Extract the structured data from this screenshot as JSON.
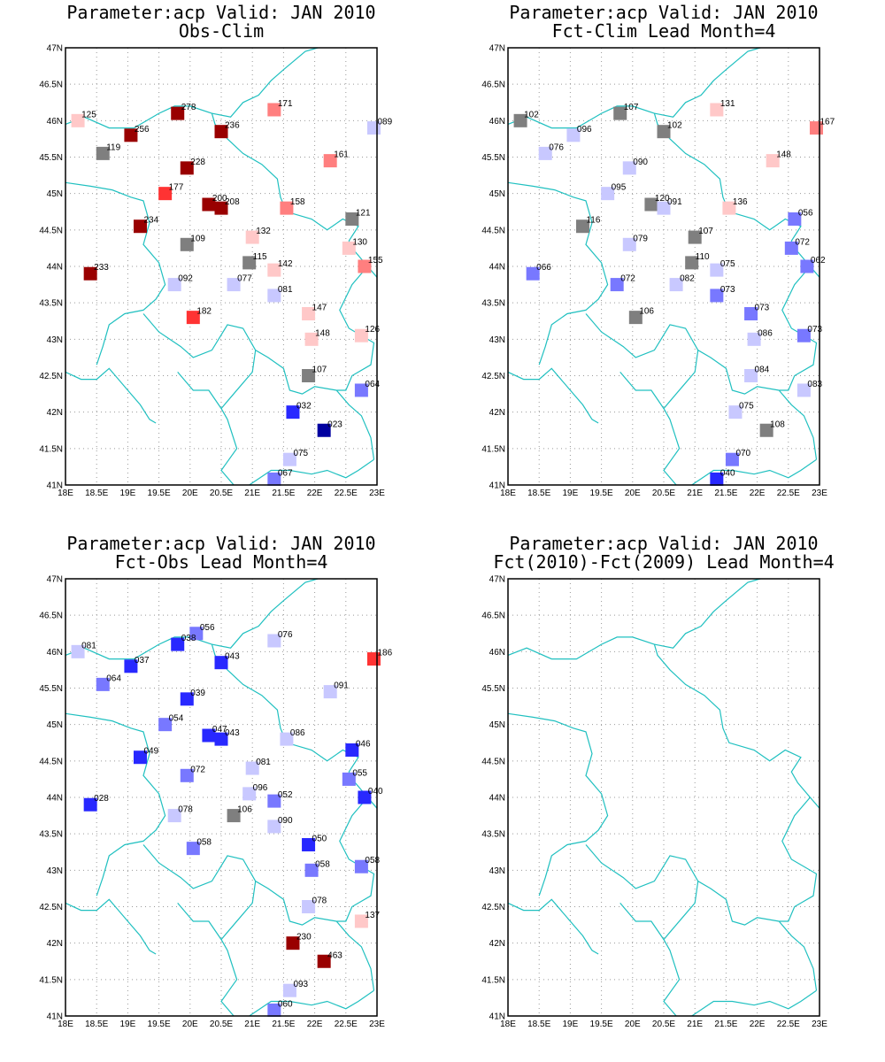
{
  "axes": {
    "lon_range": [
      18,
      23
    ],
    "lat_range": [
      41,
      47
    ],
    "lon_labels": [
      "18E",
      "18.5E",
      "19E",
      "19.5E",
      "20E",
      "20.5E",
      "21E",
      "21.5E",
      "22E",
      "22.5E",
      "23E"
    ],
    "lat_labels": [
      "41N",
      "41.5N",
      "42N",
      "42.5N",
      "43N",
      "43.5N",
      "44N",
      "44.5N",
      "45N",
      "45.5N",
      "46N",
      "46.5N",
      "47N"
    ]
  },
  "colors": {
    "dark_red": "#990000",
    "red": "#ff3333",
    "salmon": "#ff7f7f",
    "pink": "#ffc8c8",
    "gray": "#7f7f7f",
    "light_blue": "#c8c8ff",
    "mid_blue": "#7878ff",
    "blue": "#2828ff",
    "dark_blue": "#0000a0",
    "coast": "#20c0c0"
  },
  "panels": [
    {
      "title1": "Parameter:acp Valid: JAN 2010",
      "title2": "Obs-Clim",
      "stations": [
        {
          "lon": 18.2,
          "lat": 46.0,
          "label": "125",
          "color": "pink"
        },
        {
          "lon": 19.8,
          "lat": 46.1,
          "label": "278",
          "color": "dark_red"
        },
        {
          "lon": 21.35,
          "lat": 46.15,
          "label": "171",
          "color": "salmon"
        },
        {
          "lon": 22.95,
          "lat": 45.9,
          "label": "089",
          "color": "light_blue"
        },
        {
          "lon": 19.05,
          "lat": 45.8,
          "label": "256",
          "color": "dark_red"
        },
        {
          "lon": 20.5,
          "lat": 45.85,
          "label": "236",
          "color": "dark_red"
        },
        {
          "lon": 18.6,
          "lat": 45.55,
          "label": "119",
          "color": "gray"
        },
        {
          "lon": 19.95,
          "lat": 45.35,
          "label": "228",
          "color": "dark_red"
        },
        {
          "lon": 22.25,
          "lat": 45.45,
          "label": "161",
          "color": "salmon"
        },
        {
          "lon": 19.6,
          "lat": 45.0,
          "label": "177",
          "color": "red"
        },
        {
          "lon": 20.3,
          "lat": 44.85,
          "label": "200",
          "color": "dark_red"
        },
        {
          "lon": 20.5,
          "lat": 44.8,
          "label": "208",
          "color": "dark_red"
        },
        {
          "lon": 21.55,
          "lat": 44.8,
          "label": "158",
          "color": "salmon"
        },
        {
          "lon": 22.6,
          "lat": 44.65,
          "label": "121",
          "color": "gray"
        },
        {
          "lon": 19.2,
          "lat": 44.55,
          "label": "234",
          "color": "dark_red"
        },
        {
          "lon": 21.0,
          "lat": 44.4,
          "label": "132",
          "color": "pink"
        },
        {
          "lon": 22.55,
          "lat": 44.25,
          "label": "130",
          "color": "pink"
        },
        {
          "lon": 19.95,
          "lat": 44.3,
          "label": "109",
          "color": "gray"
        },
        {
          "lon": 20.95,
          "lat": 44.05,
          "label": "115",
          "color": "gray"
        },
        {
          "lon": 21.35,
          "lat": 43.95,
          "label": "142",
          "color": "pink"
        },
        {
          "lon": 22.8,
          "lat": 44.0,
          "label": "155",
          "color": "salmon"
        },
        {
          "lon": 18.4,
          "lat": 43.9,
          "label": "233",
          "color": "dark_red"
        },
        {
          "lon": 19.75,
          "lat": 43.75,
          "label": "092",
          "color": "light_blue"
        },
        {
          "lon": 20.7,
          "lat": 43.75,
          "label": "077",
          "color": "light_blue"
        },
        {
          "lon": 21.35,
          "lat": 43.6,
          "label": "081",
          "color": "light_blue"
        },
        {
          "lon": 20.05,
          "lat": 43.3,
          "label": "182",
          "color": "red"
        },
        {
          "lon": 21.9,
          "lat": 43.35,
          "label": "147",
          "color": "pink"
        },
        {
          "lon": 21.95,
          "lat": 43.0,
          "label": "148",
          "color": "pink"
        },
        {
          "lon": 22.75,
          "lat": 43.05,
          "label": "126",
          "color": "pink"
        },
        {
          "lon": 21.9,
          "lat": 42.5,
          "label": "107",
          "color": "gray"
        },
        {
          "lon": 22.75,
          "lat": 42.3,
          "label": "064",
          "color": "mid_blue"
        },
        {
          "lon": 21.65,
          "lat": 42.0,
          "label": "032",
          "color": "blue"
        },
        {
          "lon": 22.15,
          "lat": 41.75,
          "label": "023",
          "color": "dark_blue"
        },
        {
          "lon": 21.6,
          "lat": 41.35,
          "label": "075",
          "color": "light_blue"
        },
        {
          "lon": 21.35,
          "lat": 41.08,
          "label": "067",
          "color": "mid_blue"
        }
      ]
    },
    {
      "title1": "Parameter:acp Valid: JAN 2010",
      "title2": "Fct-Clim Lead Month=4",
      "stations": [
        {
          "lon": 18.2,
          "lat": 46.0,
          "label": "102",
          "color": "gray"
        },
        {
          "lon": 19.8,
          "lat": 46.1,
          "label": "107",
          "color": "gray"
        },
        {
          "lon": 21.35,
          "lat": 46.15,
          "label": "131",
          "color": "pink"
        },
        {
          "lon": 22.95,
          "lat": 45.9,
          "label": "167",
          "color": "salmon"
        },
        {
          "lon": 19.05,
          "lat": 45.8,
          "label": "096",
          "color": "light_blue"
        },
        {
          "lon": 20.5,
          "lat": 45.85,
          "label": "102",
          "color": "gray"
        },
        {
          "lon": 18.6,
          "lat": 45.55,
          "label": "076",
          "color": "light_blue"
        },
        {
          "lon": 19.95,
          "lat": 45.35,
          "label": "090",
          "color": "light_blue"
        },
        {
          "lon": 22.25,
          "lat": 45.45,
          "label": "148",
          "color": "pink"
        },
        {
          "lon": 19.6,
          "lat": 45.0,
          "label": "095",
          "color": "light_blue"
        },
        {
          "lon": 20.3,
          "lat": 44.85,
          "label": "120",
          "color": "gray"
        },
        {
          "lon": 20.5,
          "lat": 44.8,
          "label": "091",
          "color": "light_blue"
        },
        {
          "lon": 21.55,
          "lat": 44.8,
          "label": "136",
          "color": "pink"
        },
        {
          "lon": 22.6,
          "lat": 44.65,
          "label": "056",
          "color": "mid_blue"
        },
        {
          "lon": 19.2,
          "lat": 44.55,
          "label": "116",
          "color": "gray"
        },
        {
          "lon": 21.0,
          "lat": 44.4,
          "label": "107",
          "color": "gray"
        },
        {
          "lon": 22.55,
          "lat": 44.25,
          "label": "072",
          "color": "mid_blue"
        },
        {
          "lon": 19.95,
          "lat": 44.3,
          "label": "079",
          "color": "light_blue"
        },
        {
          "lon": 20.95,
          "lat": 44.05,
          "label": "110",
          "color": "gray"
        },
        {
          "lon": 21.35,
          "lat": 43.95,
          "label": "075",
          "color": "light_blue"
        },
        {
          "lon": 22.8,
          "lat": 44.0,
          "label": "062",
          "color": "mid_blue"
        },
        {
          "lon": 18.4,
          "lat": 43.9,
          "label": "066",
          "color": "mid_blue"
        },
        {
          "lon": 19.75,
          "lat": 43.75,
          "label": "072",
          "color": "mid_blue"
        },
        {
          "lon": 20.7,
          "lat": 43.75,
          "label": "082",
          "color": "light_blue"
        },
        {
          "lon": 21.35,
          "lat": 43.6,
          "label": "073",
          "color": "mid_blue"
        },
        {
          "lon": 20.05,
          "lat": 43.3,
          "label": "106",
          "color": "gray"
        },
        {
          "lon": 21.9,
          "lat": 43.35,
          "label": "073",
          "color": "mid_blue"
        },
        {
          "lon": 21.95,
          "lat": 43.0,
          "label": "086",
          "color": "light_blue"
        },
        {
          "lon": 22.75,
          "lat": 43.05,
          "label": "073",
          "color": "mid_blue"
        },
        {
          "lon": 21.9,
          "lat": 42.5,
          "label": "084",
          "color": "light_blue"
        },
        {
          "lon": 22.75,
          "lat": 42.3,
          "label": "083",
          "color": "light_blue"
        },
        {
          "lon": 21.65,
          "lat": 42.0,
          "label": "075",
          "color": "light_blue"
        },
        {
          "lon": 22.15,
          "lat": 41.75,
          "label": "108",
          "color": "gray"
        },
        {
          "lon": 21.6,
          "lat": 41.35,
          "label": "070",
          "color": "mid_blue"
        },
        {
          "lon": 21.35,
          "lat": 41.08,
          "label": "040",
          "color": "blue"
        }
      ]
    },
    {
      "title1": "Parameter:acp Valid: JAN 2010",
      "title2": "Fct-Obs Lead Month=4",
      "stations": [
        {
          "lon": 18.2,
          "lat": 46.0,
          "label": "081",
          "color": "light_blue"
        },
        {
          "lon": 20.1,
          "lat": 46.25,
          "label": "056",
          "color": "mid_blue"
        },
        {
          "lon": 19.8,
          "lat": 46.1,
          "label": "038",
          "color": "blue"
        },
        {
          "lon": 21.35,
          "lat": 46.15,
          "label": "076",
          "color": "light_blue"
        },
        {
          "lon": 22.95,
          "lat": 45.9,
          "label": "186",
          "color": "red"
        },
        {
          "lon": 19.05,
          "lat": 45.8,
          "label": "037",
          "color": "blue"
        },
        {
          "lon": 20.5,
          "lat": 45.85,
          "label": "043",
          "color": "blue"
        },
        {
          "lon": 18.6,
          "lat": 45.55,
          "label": "064",
          "color": "mid_blue"
        },
        {
          "lon": 19.95,
          "lat": 45.35,
          "label": "039",
          "color": "blue"
        },
        {
          "lon": 22.25,
          "lat": 45.45,
          "label": "091",
          "color": "light_blue"
        },
        {
          "lon": 19.6,
          "lat": 45.0,
          "label": "054",
          "color": "mid_blue"
        },
        {
          "lon": 20.3,
          "lat": 44.85,
          "label": "047",
          "color": "blue"
        },
        {
          "lon": 20.5,
          "lat": 44.8,
          "label": "043",
          "color": "blue"
        },
        {
          "lon": 21.55,
          "lat": 44.8,
          "label": "086",
          "color": "light_blue"
        },
        {
          "lon": 22.6,
          "lat": 44.65,
          "label": "046",
          "color": "blue"
        },
        {
          "lon": 19.2,
          "lat": 44.55,
          "label": "049",
          "color": "blue"
        },
        {
          "lon": 21.0,
          "lat": 44.4,
          "label": "081",
          "color": "light_blue"
        },
        {
          "lon": 22.55,
          "lat": 44.25,
          "label": "055",
          "color": "mid_blue"
        },
        {
          "lon": 19.95,
          "lat": 44.3,
          "label": "072",
          "color": "mid_blue"
        },
        {
          "lon": 20.95,
          "lat": 44.05,
          "label": "096",
          "color": "light_blue"
        },
        {
          "lon": 21.35,
          "lat": 43.95,
          "label": "052",
          "color": "mid_blue"
        },
        {
          "lon": 22.8,
          "lat": 44.0,
          "label": "040",
          "color": "blue"
        },
        {
          "lon": 18.4,
          "lat": 43.9,
          "label": "028",
          "color": "blue"
        },
        {
          "lon": 19.75,
          "lat": 43.75,
          "label": "078",
          "color": "light_blue"
        },
        {
          "lon": 20.7,
          "lat": 43.75,
          "label": "106",
          "color": "gray"
        },
        {
          "lon": 21.35,
          "lat": 43.6,
          "label": "090",
          "color": "light_blue"
        },
        {
          "lon": 20.05,
          "lat": 43.3,
          "label": "058",
          "color": "mid_blue"
        },
        {
          "lon": 21.9,
          "lat": 43.35,
          "label": "050",
          "color": "blue"
        },
        {
          "lon": 21.95,
          "lat": 43.0,
          "label": "058",
          "color": "mid_blue"
        },
        {
          "lon": 22.75,
          "lat": 43.05,
          "label": "058",
          "color": "mid_blue"
        },
        {
          "lon": 21.9,
          "lat": 42.5,
          "label": "078",
          "color": "light_blue"
        },
        {
          "lon": 22.75,
          "lat": 42.3,
          "label": "137",
          "color": "pink"
        },
        {
          "lon": 21.65,
          "lat": 42.0,
          "label": "230",
          "color": "dark_red"
        },
        {
          "lon": 22.15,
          "lat": 41.75,
          "label": "463",
          "color": "dark_red"
        },
        {
          "lon": 21.6,
          "lat": 41.35,
          "label": "093",
          "color": "light_blue"
        },
        {
          "lon": 21.35,
          "lat": 41.08,
          "label": "060",
          "color": "mid_blue"
        }
      ]
    },
    {
      "title1": "Parameter:acp Valid: JAN 2010",
      "title2": "Fct(2010)-Fct(2009) Lead Month=4",
      "stations": []
    }
  ],
  "borders": [
    [
      [
        18.0,
        45.95
      ],
      [
        18.3,
        46.05
      ],
      [
        18.7,
        45.9
      ],
      [
        19.1,
        45.9
      ],
      [
        19.5,
        46.1
      ],
      [
        19.75,
        46.2
      ],
      [
        20.0,
        46.2
      ],
      [
        20.35,
        46.1
      ],
      [
        20.65,
        46.05
      ],
      [
        20.85,
        46.25
      ],
      [
        21.1,
        46.35
      ],
      [
        21.3,
        46.55
      ],
      [
        21.5,
        46.7
      ],
      [
        21.85,
        46.95
      ],
      [
        22.05,
        47.0
      ]
    ],
    [
      [
        18.0,
        42.55
      ],
      [
        18.25,
        42.45
      ],
      [
        18.5,
        42.45
      ],
      [
        18.7,
        42.6
      ],
      [
        19.0,
        42.3
      ],
      [
        19.2,
        42.1
      ],
      [
        19.35,
        41.9
      ],
      [
        19.45,
        41.85
      ]
    ],
    [
      [
        18.0,
        45.15
      ],
      [
        18.4,
        45.1
      ],
      [
        18.75,
        45.05
      ],
      [
        19.05,
        44.95
      ],
      [
        19.25,
        44.9
      ],
      [
        19.35,
        44.6
      ],
      [
        19.25,
        44.3
      ],
      [
        19.5,
        44.05
      ],
      [
        19.6,
        43.75
      ],
      [
        19.45,
        43.55
      ],
      [
        19.25,
        43.4
      ],
      [
        18.95,
        43.35
      ],
      [
        18.7,
        43.2
      ],
      [
        18.6,
        42.9
      ],
      [
        18.5,
        42.65
      ]
    ],
    [
      [
        19.25,
        43.35
      ],
      [
        19.5,
        43.1
      ],
      [
        19.85,
        42.9
      ],
      [
        20.05,
        42.75
      ],
      [
        20.35,
        42.85
      ],
      [
        20.6,
        43.2
      ],
      [
        20.85,
        43.15
      ],
      [
        21.05,
        42.85
      ],
      [
        21.25,
        42.75
      ],
      [
        21.5,
        42.6
      ],
      [
        21.6,
        42.3
      ],
      [
        21.8,
        42.25
      ],
      [
        22.0,
        42.35
      ],
      [
        22.35,
        42.3
      ]
    ],
    [
      [
        19.8,
        42.55
      ],
      [
        20.05,
        42.3
      ],
      [
        20.3,
        42.3
      ],
      [
        20.5,
        42.05
      ],
      [
        20.6,
        41.9
      ],
      [
        20.75,
        41.5
      ],
      [
        20.5,
        41.2
      ],
      [
        20.7,
        41.0
      ]
    ],
    [
      [
        21.05,
        42.85
      ],
      [
        21.0,
        42.55
      ],
      [
        20.8,
        42.35
      ],
      [
        20.6,
        42.15
      ],
      [
        20.5,
        42.05
      ]
    ],
    [
      [
        20.95,
        41.0
      ],
      [
        21.3,
        41.2
      ],
      [
        21.6,
        41.2
      ],
      [
        21.95,
        41.15
      ],
      [
        22.2,
        41.2
      ],
      [
        22.5,
        41.1
      ],
      [
        22.7,
        41.2
      ],
      [
        22.95,
        41.35
      ]
    ],
    [
      [
        22.35,
        42.3
      ],
      [
        22.55,
        42.1
      ],
      [
        22.75,
        41.95
      ],
      [
        22.9,
        41.65
      ],
      [
        22.95,
        41.35
      ]
    ],
    [
      [
        20.35,
        46.1
      ],
      [
        20.4,
        45.95
      ],
      [
        20.6,
        45.75
      ],
      [
        20.85,
        45.55
      ],
      [
        21.15,
        45.4
      ],
      [
        21.4,
        45.2
      ],
      [
        21.45,
        44.95
      ],
      [
        21.55,
        44.75
      ],
      [
        21.95,
        44.65
      ],
      [
        22.2,
        44.5
      ],
      [
        22.45,
        44.65
      ],
      [
        22.7,
        44.55
      ],
      [
        22.55,
        44.35
      ],
      [
        22.65,
        44.2
      ],
      [
        22.85,
        44.0
      ],
      [
        23.0,
        43.85
      ]
    ],
    [
      [
        22.85,
        44.0
      ],
      [
        22.6,
        43.75
      ],
      [
        22.4,
        43.4
      ],
      [
        22.55,
        43.15
      ],
      [
        22.95,
        42.95
      ],
      [
        22.9,
        42.65
      ],
      [
        22.6,
        42.5
      ],
      [
        22.5,
        42.3
      ],
      [
        22.35,
        42.3
      ]
    ]
  ]
}
